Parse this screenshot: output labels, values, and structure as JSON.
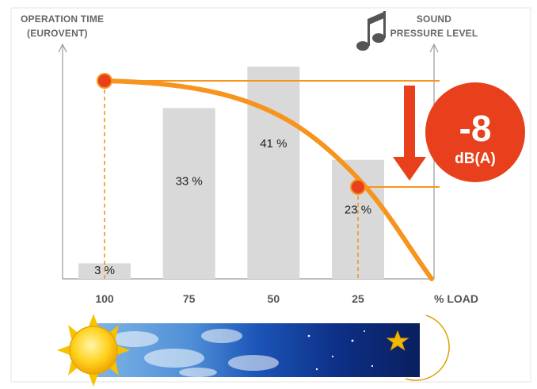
{
  "chart_data": {
    "type": "bar",
    "left_axis_title": [
      "OPERATION TIME",
      "(EUROVENT)"
    ],
    "right_axis_title": [
      "SOUND",
      "PRESSURE LEVEL"
    ],
    "xlabel": "% LOAD",
    "categories": [
      "100",
      "75",
      "50",
      "25"
    ],
    "series": [
      {
        "values": [
          3,
          33,
          41,
          23
        ],
        "labels": [
          "3 %",
          "33 %",
          "41 %",
          "23 %"
        ]
      }
    ],
    "ylim": [
      0,
      45
    ],
    "curve": {
      "type": "line",
      "marked_points": [
        {
          "x": "100",
          "level": "high"
        },
        {
          "x": "25",
          "level": "low"
        }
      ]
    },
    "annotation": {
      "value": "-8",
      "unit": "dB(A)"
    },
    "colors": {
      "bar": "#d9d9d9",
      "curve": "#f7941d",
      "marker": "#e8401c",
      "badge": "#e8401c",
      "arrow": "#e8401c",
      "axis": "#999999"
    },
    "icons": [
      "music-note-icon",
      "sun-icon",
      "moon-icon",
      "star-icon"
    ]
  }
}
